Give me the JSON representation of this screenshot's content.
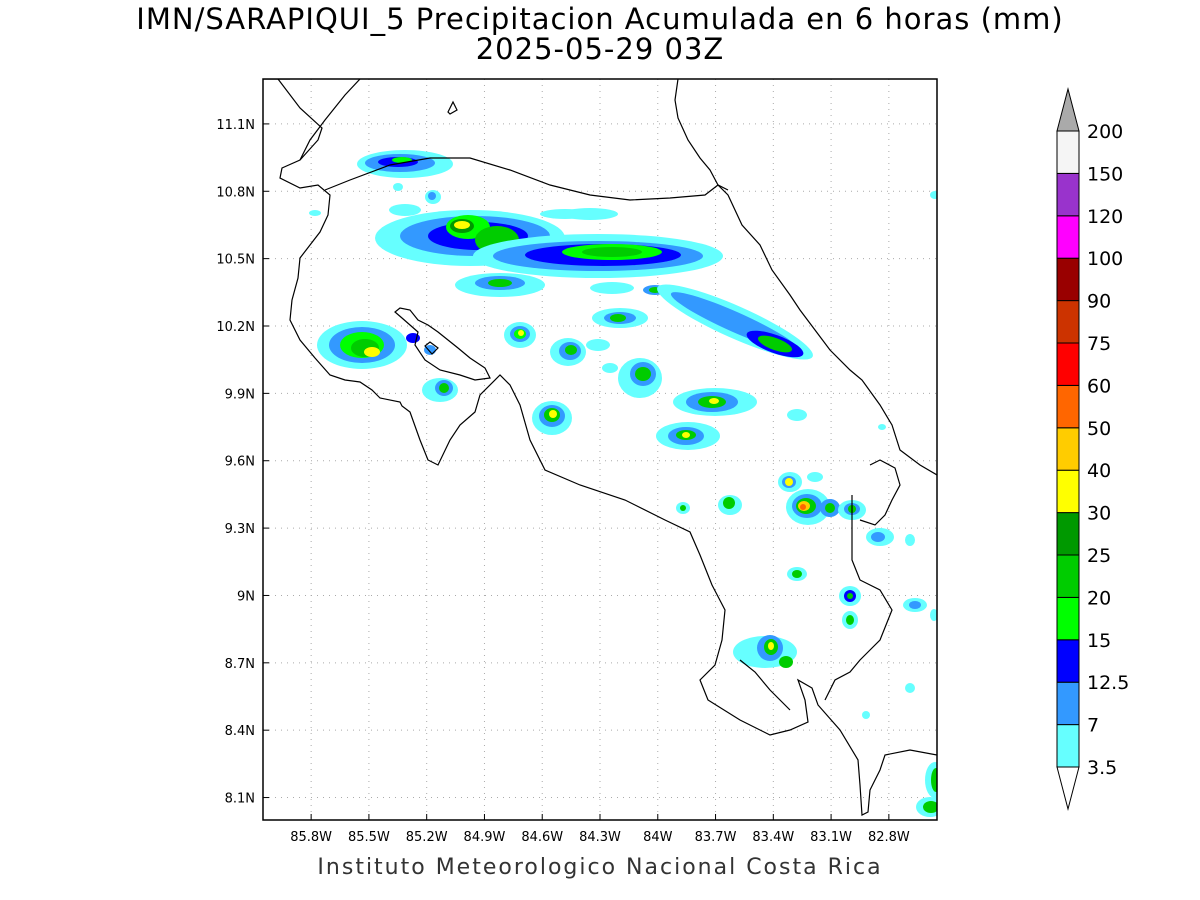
{
  "title": "IMN/SARAPIQUI_5 Precipitacion Acumulada en 6 horas (mm)",
  "subtitle": "2025-05-29 03Z",
  "footer": "Instituto Meteorologico Nacional Costa Rica",
  "map": {
    "lon_range": [
      -86.05,
      -82.55
    ],
    "lat_range": [
      8.0,
      11.3
    ],
    "lon_ticks": [
      "85.8W",
      "85.5W",
      "85.2W",
      "84.9W",
      "84.6W",
      "84.3W",
      "84W",
      "83.7W",
      "83.4W",
      "83.1W",
      "82.8W"
    ],
    "lat_ticks": [
      "11.1N",
      "10.8N",
      "10.5N",
      "10.2N",
      "9.9N",
      "9.6N",
      "9.3N",
      "9N",
      "8.7N",
      "8.4N",
      "8.1N"
    ],
    "grid": true
  },
  "colorbar": {
    "levels": [
      "3.5",
      "7",
      "12.5",
      "15",
      "20",
      "25",
      "30",
      "40",
      "50",
      "60",
      "75",
      "90",
      "100",
      "120",
      "150",
      "200"
    ],
    "colors": [
      "#66ffff",
      "#3399ff",
      "#0000ff",
      "#00ff00",
      "#00cc00",
      "#009900",
      "#ffff00",
      "#ffcc00",
      "#ff6600",
      "#ff0000",
      "#cc3300",
      "#990000",
      "#ff00ff",
      "#9933cc",
      "#f5f5f5"
    ],
    "over_color": "#aaaaaa",
    "under_color": "#ffffff"
  }
}
